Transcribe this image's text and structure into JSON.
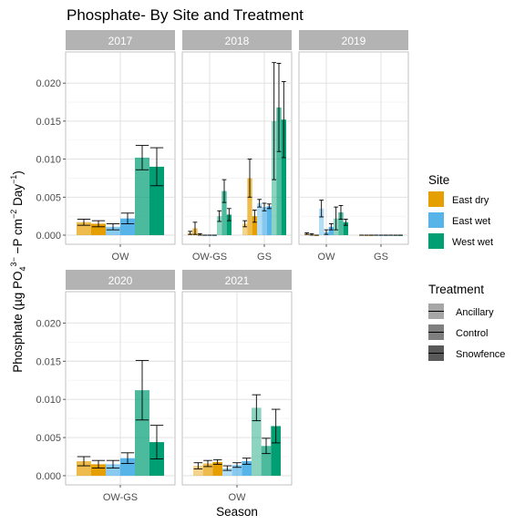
{
  "chart_data": {
    "type": "bar",
    "title": "Phosphate- By Site and Treatment",
    "xlabel": "Season",
    "ylabel_parts": {
      "prefix": "Phosphate (µg PO",
      "sub4": "4",
      "sup3": "3−",
      "mid": " −P cm",
      "sup2": "−2",
      "day": " Day",
      "sup1": "−1",
      "suffix": ")"
    },
    "ylim": [
      -0.0012,
      0.0241
    ],
    "yticks": [
      0.0,
      0.005,
      0.01,
      0.015,
      0.02
    ],
    "ytick_labels": [
      "0.000",
      "0.005",
      "0.010",
      "0.015",
      "0.020"
    ],
    "sites": [
      {
        "name": "East dry",
        "color": "#E69F00"
      },
      {
        "name": "East wet",
        "color": "#56B4E9"
      },
      {
        "name": "West wet",
        "color": "#009E73"
      }
    ],
    "treatments": [
      {
        "name": "Ancillary",
        "alpha": 0.45
      },
      {
        "name": "Control",
        "alpha": 0.7
      },
      {
        "name": "Snowfence",
        "alpha": 1.0
      }
    ],
    "legend": {
      "site_title": "Site",
      "treatment_title": "Treatment"
    },
    "panels": [
      {
        "label": "2017",
        "seasons": [
          {
            "name": "OW",
            "bars": [
              {
                "site": "East dry",
                "treatment": "Control",
                "value": 0.0017,
                "err": 0.0004
              },
              {
                "site": "East dry",
                "treatment": "Snowfence",
                "value": 0.0015,
                "err": 0.0004
              },
              {
                "site": "East wet",
                "treatment": "Control",
                "value": 0.0011,
                "err": 0.0004
              },
              {
                "site": "East wet",
                "treatment": "Snowfence",
                "value": 0.0022,
                "err": 0.0007
              },
              {
                "site": "West wet",
                "treatment": "Control",
                "value": 0.0102,
                "err": 0.0016
              },
              {
                "site": "West wet",
                "treatment": "Snowfence",
                "value": 0.009,
                "err": 0.0025
              }
            ]
          }
        ]
      },
      {
        "label": "2018",
        "seasons": [
          {
            "name": "OW-GS",
            "bars": [
              {
                "site": "East dry",
                "treatment": "Ancillary",
                "value": 0.0003,
                "err": 0.0002
              },
              {
                "site": "East dry",
                "treatment": "Control",
                "value": 0.0009,
                "err": 0.0008
              },
              {
                "site": "East dry",
                "treatment": "Snowfence",
                "value": 0.0001,
                "err": 0.0001
              },
              {
                "site": "East wet",
                "treatment": "Ancillary",
                "value": 0.0,
                "err": 0.0
              },
              {
                "site": "East wet",
                "treatment": "Control",
                "value": 0.0,
                "err": 0.0
              },
              {
                "site": "East wet",
                "treatment": "Snowfence",
                "value": 0.0,
                "err": 0.0
              },
              {
                "site": "West wet",
                "treatment": "Ancillary",
                "value": 0.0025,
                "err": 0.0007
              },
              {
                "site": "West wet",
                "treatment": "Control",
                "value": 0.0058,
                "err": 0.0015
              },
              {
                "site": "West wet",
                "treatment": "Snowfence",
                "value": 0.0027,
                "err": 0.0008
              }
            ]
          },
          {
            "name": "GS",
            "bars": [
              {
                "site": "East dry",
                "treatment": "Ancillary",
                "value": 0.0015,
                "err": 0.0004
              },
              {
                "site": "East dry",
                "treatment": "Control",
                "value": 0.0075,
                "err": 0.0025
              },
              {
                "site": "East dry",
                "treatment": "Snowfence",
                "value": 0.0025,
                "err": 0.0008
              },
              {
                "site": "East wet",
                "treatment": "Ancillary",
                "value": 0.0042,
                "err": 0.0005
              },
              {
                "site": "East wet",
                "treatment": "Control",
                "value": 0.0037,
                "err": 0.0005
              },
              {
                "site": "East wet",
                "treatment": "Snowfence",
                "value": 0.0038,
                "err": 0.0003
              },
              {
                "site": "West wet",
                "treatment": "Ancillary",
                "value": 0.015,
                "err": 0.0077
              },
              {
                "site": "West wet",
                "treatment": "Control",
                "value": 0.0168,
                "err": 0.0058
              },
              {
                "site": "West wet",
                "treatment": "Snowfence",
                "value": 0.0152,
                "err": 0.005
              }
            ]
          }
        ]
      },
      {
        "label": "2019",
        "seasons": [
          {
            "name": "OW",
            "bars": [
              {
                "site": "East dry",
                "treatment": "Ancillary",
                "value": 0.0002,
                "err": 0.0001
              },
              {
                "site": "East dry",
                "treatment": "Control",
                "value": 0.0001,
                "err": 0.0001
              },
              {
                "site": "East dry",
                "treatment": "Snowfence",
                "value": 0.0,
                "err": 0.0
              },
              {
                "site": "East wet",
                "treatment": "Ancillary",
                "value": 0.0035,
                "err": 0.0011
              },
              {
                "site": "East wet",
                "treatment": "Control",
                "value": 0.0004,
                "err": 0.0003
              },
              {
                "site": "East wet",
                "treatment": "Snowfence",
                "value": 0.0011,
                "err": 0.0004
              },
              {
                "site": "West wet",
                "treatment": "Ancillary",
                "value": 0.0022,
                "err": 0.0015
              },
              {
                "site": "West wet",
                "treatment": "Control",
                "value": 0.003,
                "err": 0.0009
              },
              {
                "site": "West wet",
                "treatment": "Snowfence",
                "value": 0.0017,
                "err": 0.0004
              }
            ]
          },
          {
            "name": "GS",
            "bars": [
              {
                "site": "East dry",
                "treatment": "Ancillary",
                "value": 0.0,
                "err": 0.0
              },
              {
                "site": "East dry",
                "treatment": "Control",
                "value": 0.0,
                "err": 0.0
              },
              {
                "site": "East dry",
                "treatment": "Snowfence",
                "value": 0.0,
                "err": 0.0
              },
              {
                "site": "East wet",
                "treatment": "Ancillary",
                "value": 0.0,
                "err": 0.0
              },
              {
                "site": "East wet",
                "treatment": "Control",
                "value": 0.0,
                "err": 0.0
              },
              {
                "site": "East wet",
                "treatment": "Snowfence",
                "value": 0.0,
                "err": 0.0
              },
              {
                "site": "West wet",
                "treatment": "Ancillary",
                "value": 0.0,
                "err": 0.0
              },
              {
                "site": "West wet",
                "treatment": "Control",
                "value": 0.0,
                "err": 0.0
              },
              {
                "site": "West wet",
                "treatment": "Snowfence",
                "value": 0.0,
                "err": 0.0
              }
            ]
          }
        ]
      },
      {
        "label": "2020",
        "seasons": [
          {
            "name": "OW-GS",
            "bars": [
              {
                "site": "East dry",
                "treatment": "Control",
                "value": 0.0019,
                "err": 0.0006
              },
              {
                "site": "East dry",
                "treatment": "Snowfence",
                "value": 0.0015,
                "err": 0.0005
              },
              {
                "site": "East wet",
                "treatment": "Control",
                "value": 0.0015,
                "err": 0.0005
              },
              {
                "site": "East wet",
                "treatment": "Snowfence",
                "value": 0.0023,
                "err": 0.0007
              },
              {
                "site": "West wet",
                "treatment": "Control",
                "value": 0.0112,
                "err": 0.0039
              },
              {
                "site": "West wet",
                "treatment": "Snowfence",
                "value": 0.0044,
                "err": 0.0022
              }
            ]
          }
        ]
      },
      {
        "label": "2021",
        "seasons": [
          {
            "name": "OW",
            "bars": [
              {
                "site": "East dry",
                "treatment": "Ancillary",
                "value": 0.0013,
                "err": 0.0004
              },
              {
                "site": "East dry",
                "treatment": "Control",
                "value": 0.0016,
                "err": 0.0004
              },
              {
                "site": "East dry",
                "treatment": "Snowfence",
                "value": 0.0018,
                "err": 0.0003
              },
              {
                "site": "East wet",
                "treatment": "Ancillary",
                "value": 0.001,
                "err": 0.0003
              },
              {
                "site": "East wet",
                "treatment": "Control",
                "value": 0.0014,
                "err": 0.0003
              },
              {
                "site": "East wet",
                "treatment": "Snowfence",
                "value": 0.0019,
                "err": 0.0004
              },
              {
                "site": "West wet",
                "treatment": "Ancillary",
                "value": 0.0089,
                "err": 0.0017
              },
              {
                "site": "West wet",
                "treatment": "Control",
                "value": 0.0039,
                "err": 0.001
              },
              {
                "site": "West wet",
                "treatment": "Snowfence",
                "value": 0.0065,
                "err": 0.0022
              }
            ]
          }
        ]
      }
    ]
  }
}
